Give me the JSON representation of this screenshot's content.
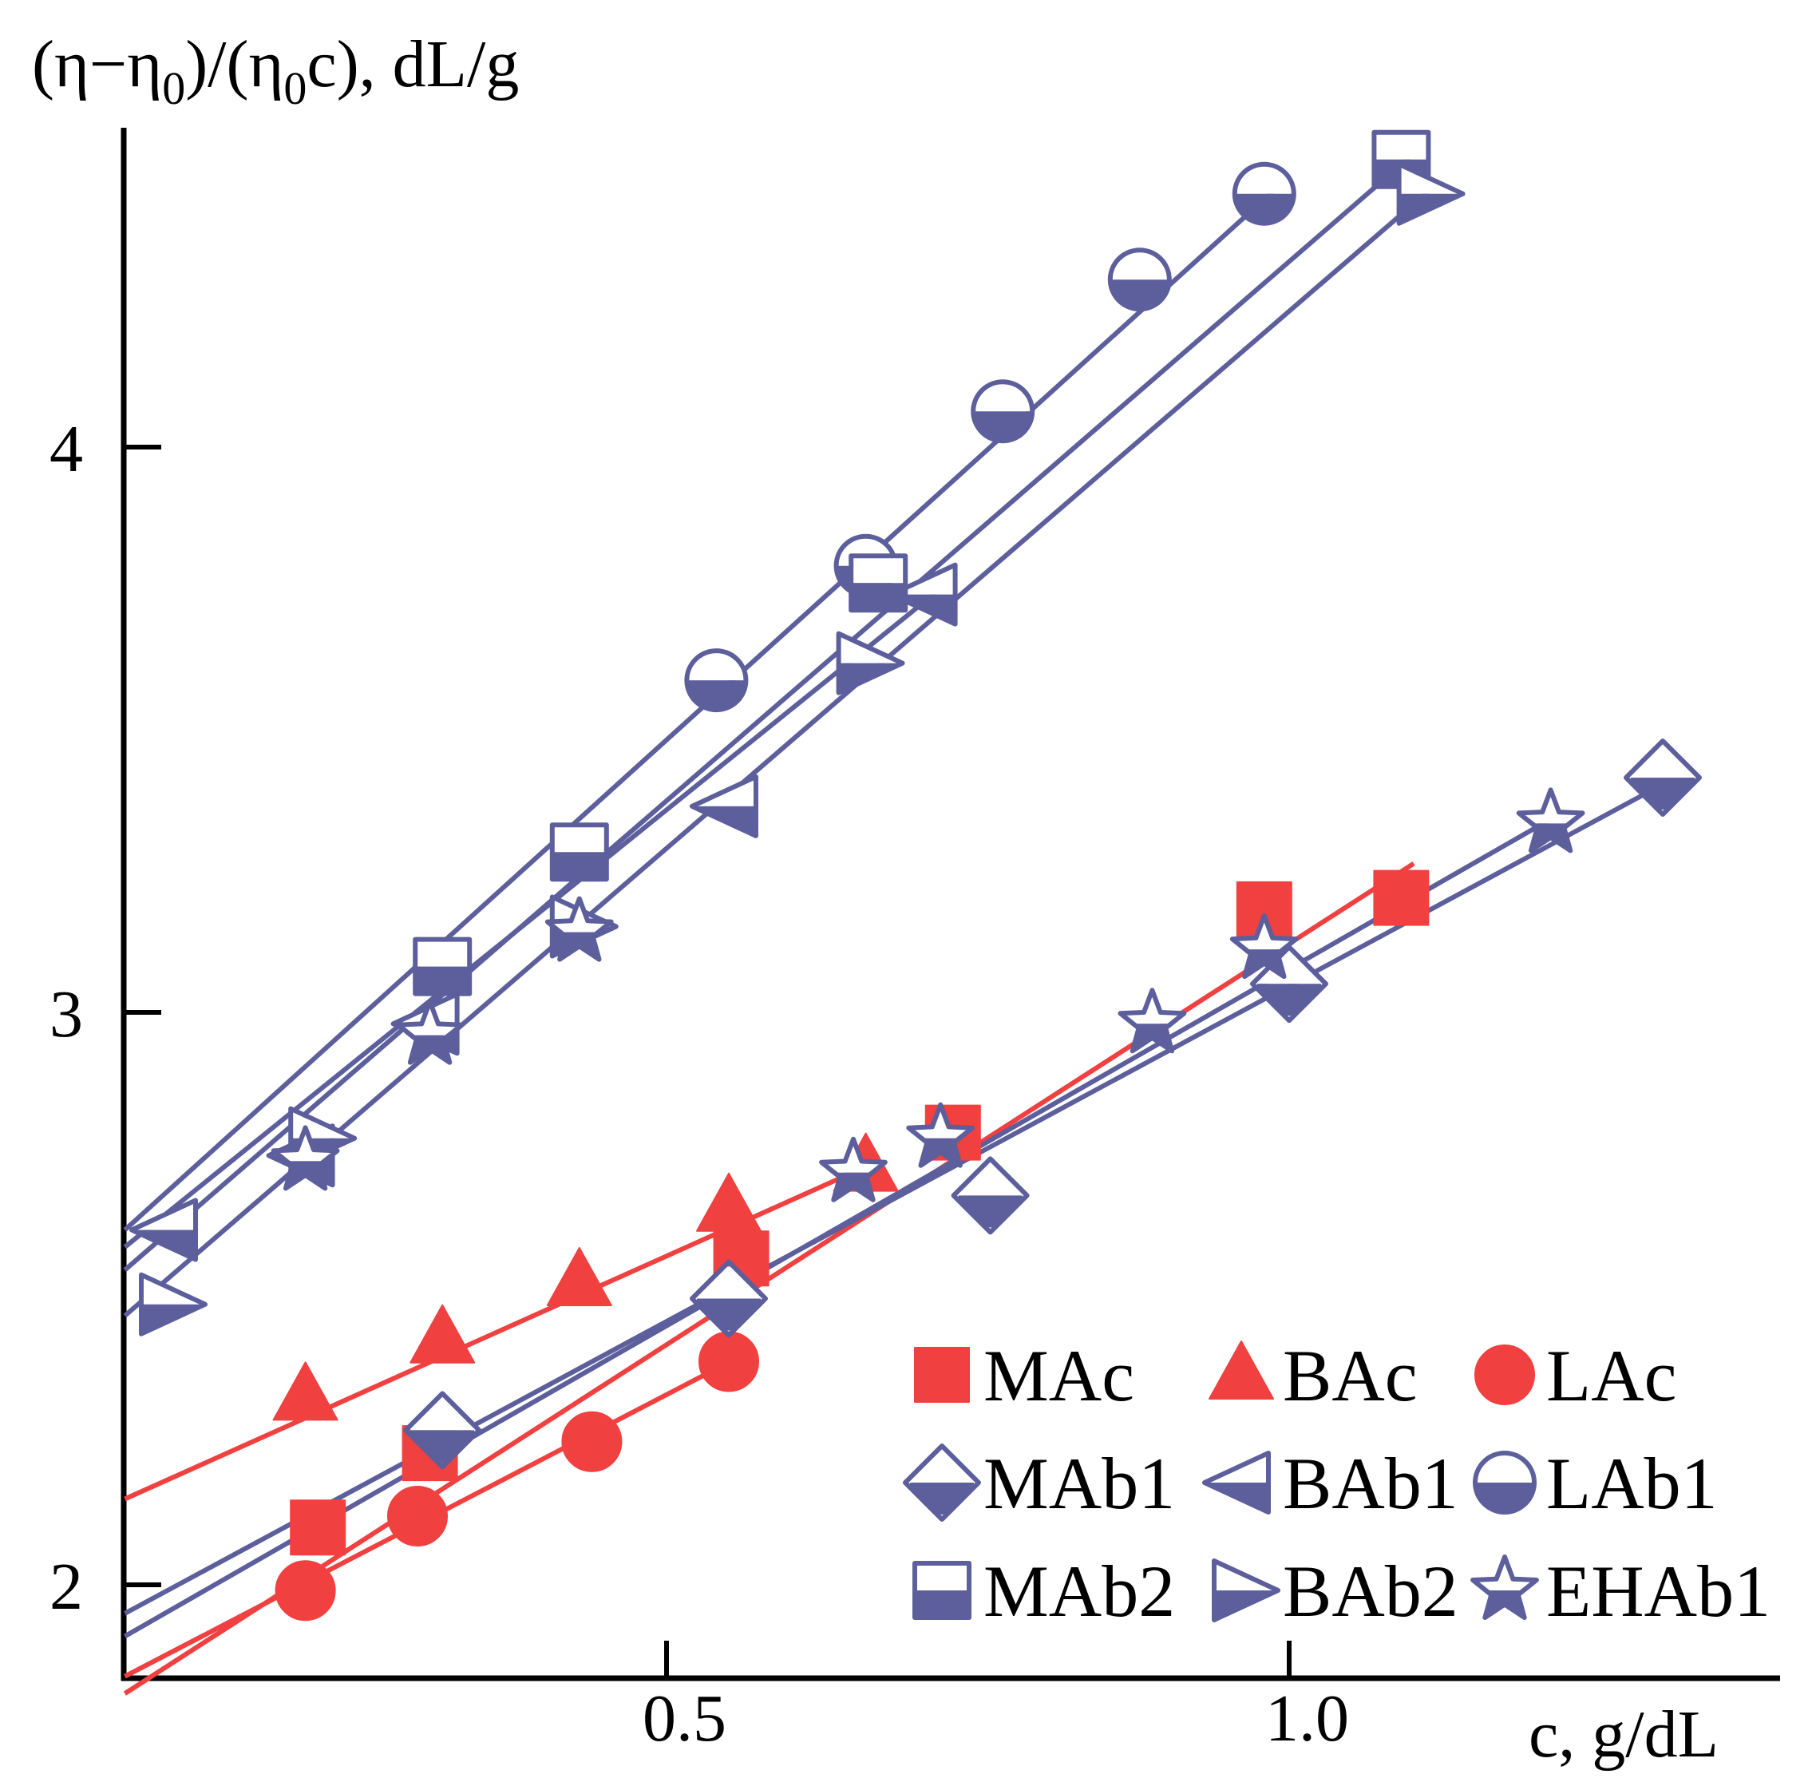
{
  "chart_data": {
    "type": "scatter",
    "title": "",
    "ylabel": "(η−η0)/(η0c), dL/g",
    "xlabel": "c, g/dL",
    "xlim": [
      0.065,
      1.41
    ],
    "ylim": [
      1.82,
      4.55
    ],
    "xticks": [
      0.5,
      1.0
    ],
    "xtick_labels": [
      "0.5",
      "1.0"
    ],
    "yticks": [
      2,
      3,
      4
    ],
    "ytick_labels": [
      "2",
      "3",
      "4"
    ],
    "grid": false,
    "legend_position": "bottom-right",
    "colors": {
      "red": "#f04040",
      "blue": "#5c5f9c"
    },
    "series": [
      {
        "name": "MAc",
        "marker": "square-filled",
        "color": "#f04040",
        "x": [
          0.22,
          0.31,
          0.56,
          0.73,
          0.98,
          1.09
        ],
        "y": [
          2.1,
          2.23,
          2.57,
          2.79,
          3.18,
          3.2
        ],
        "fit": {
          "x": [
            0.065,
            1.1
          ],
          "y": [
            1.81,
            3.26
          ]
        }
      },
      {
        "name": "BAc",
        "marker": "triangle-filled",
        "color": "#f04040",
        "x": [
          0.21,
          0.32,
          0.43,
          0.55,
          0.66
        ],
        "y": [
          2.33,
          2.43,
          2.53,
          2.66,
          2.73
        ],
        "fit": {
          "x": [
            0.065,
            0.67
          ],
          "y": [
            2.15,
            2.74
          ]
        }
      },
      {
        "name": "LAc",
        "marker": "circle-filled",
        "color": "#f04040",
        "x": [
          0.21,
          0.3,
          0.44,
          0.55
        ],
        "y": [
          1.99,
          2.12,
          2.25,
          2.39
        ],
        "fit": {
          "x": [
            0.065,
            0.56
          ],
          "y": [
            1.84,
            2.4
          ]
        }
      },
      {
        "name": "MAb1",
        "marker": "diamond-half",
        "color": "#5c5f9c",
        "x": [
          0.32,
          0.55,
          0.76,
          1.0,
          1.3
        ],
        "y": [
          2.27,
          2.5,
          2.68,
          3.05,
          3.41
        ],
        "fit": {
          "x": [
            0.065,
            1.31
          ],
          "y": [
            1.95,
            3.41
          ]
        }
      },
      {
        "name": "BAb1",
        "marker": "triangle-left-half",
        "color": "#5c5f9c",
        "x": [
          0.1,
          0.21,
          0.31,
          0.55,
          0.71
        ],
        "y": [
          2.62,
          2.75,
          2.98,
          3.36,
          3.73
        ],
        "fit": {
          "x": [
            0.065,
            0.72
          ],
          "y": [
            2.59,
            3.74
          ]
        }
      },
      {
        "name": "LAb1",
        "marker": "circle-half",
        "color": "#5c5f9c",
        "x": [
          0.54,
          0.66,
          0.77,
          0.88,
          0.98
        ],
        "y": [
          3.58,
          3.78,
          4.05,
          4.28,
          4.43
        ],
        "fit": {
          "x": [
            0.065,
            0.99
          ],
          "y": [
            2.62,
            4.44
          ]
        }
      },
      {
        "name": "MAb2",
        "marker": "square-half",
        "color": "#5c5f9c",
        "x": [
          0.43,
          0.32,
          0.67,
          1.09
        ],
        "y": [
          3.28,
          3.08,
          3.75,
          4.49
        ],
        "fit": {
          "x": [
            0.065,
            1.1
          ],
          "y": [
            2.55,
            4.5
          ]
        }
      },
      {
        "name": "BAb2",
        "marker": "triangle-right-half",
        "color": "#5c5f9c",
        "x": [
          0.1,
          0.22,
          0.43,
          0.66,
          1.11
        ],
        "y": [
          2.49,
          2.78,
          3.15,
          3.61,
          4.43
        ],
        "fit": {
          "x": [
            0.065,
            1.12
          ],
          "y": [
            2.47,
            4.45
          ]
        }
      },
      {
        "name": "EHAb1",
        "marker": "star-half",
        "color": "#5c5f9c",
        "x": [
          0.21,
          0.31,
          0.43,
          0.65,
          0.72,
          0.89,
          0.98,
          1.21
        ],
        "y": [
          2.74,
          2.96,
          3.14,
          2.72,
          2.78,
          2.98,
          3.11,
          3.33
        ],
        "fit": {
          "x": [
            0.065,
            1.22
          ],
          "y": [
            1.91,
            3.35
          ]
        }
      }
    ]
  }
}
